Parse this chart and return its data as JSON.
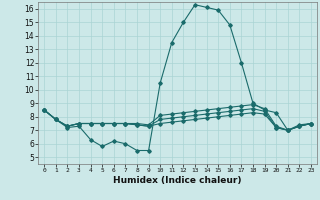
{
  "xlabel": "Humidex (Indice chaleur)",
  "background_color": "#cce8e8",
  "line_color": "#1a6b6b",
  "grid_color": "#aad4d4",
  "xlim": [
    -0.5,
    23.5
  ],
  "ylim": [
    4.5,
    16.5
  ],
  "xticks": [
    0,
    1,
    2,
    3,
    4,
    5,
    6,
    7,
    8,
    9,
    10,
    11,
    12,
    13,
    14,
    15,
    16,
    17,
    18,
    19,
    20,
    21,
    22,
    23
  ],
  "yticks": [
    5,
    6,
    7,
    8,
    9,
    10,
    11,
    12,
    13,
    14,
    15,
    16
  ],
  "series": [
    [
      8.5,
      7.8,
      7.2,
      7.3,
      6.3,
      5.8,
      6.2,
      6.0,
      5.5,
      5.5,
      10.5,
      13.5,
      15.0,
      16.3,
      16.1,
      15.9,
      14.8,
      12.0,
      9.0,
      8.5,
      8.3,
      7.0,
      7.3,
      7.5
    ],
    [
      8.5,
      7.8,
      7.3,
      7.5,
      7.5,
      7.5,
      7.5,
      7.5,
      7.5,
      7.4,
      8.1,
      8.2,
      8.3,
      8.4,
      8.5,
      8.6,
      8.7,
      8.8,
      8.9,
      8.6,
      7.3,
      7.0,
      7.4,
      7.5
    ],
    [
      8.5,
      7.8,
      7.3,
      7.5,
      7.5,
      7.5,
      7.5,
      7.5,
      7.4,
      7.3,
      7.8,
      7.9,
      8.0,
      8.1,
      8.2,
      8.3,
      8.4,
      8.5,
      8.6,
      8.4,
      7.2,
      7.0,
      7.3,
      7.5
    ],
    [
      8.5,
      7.8,
      7.3,
      7.5,
      7.5,
      7.5,
      7.5,
      7.5,
      7.4,
      7.3,
      7.5,
      7.6,
      7.7,
      7.8,
      7.9,
      8.0,
      8.1,
      8.2,
      8.3,
      8.2,
      7.2,
      7.0,
      7.3,
      7.5
    ]
  ]
}
